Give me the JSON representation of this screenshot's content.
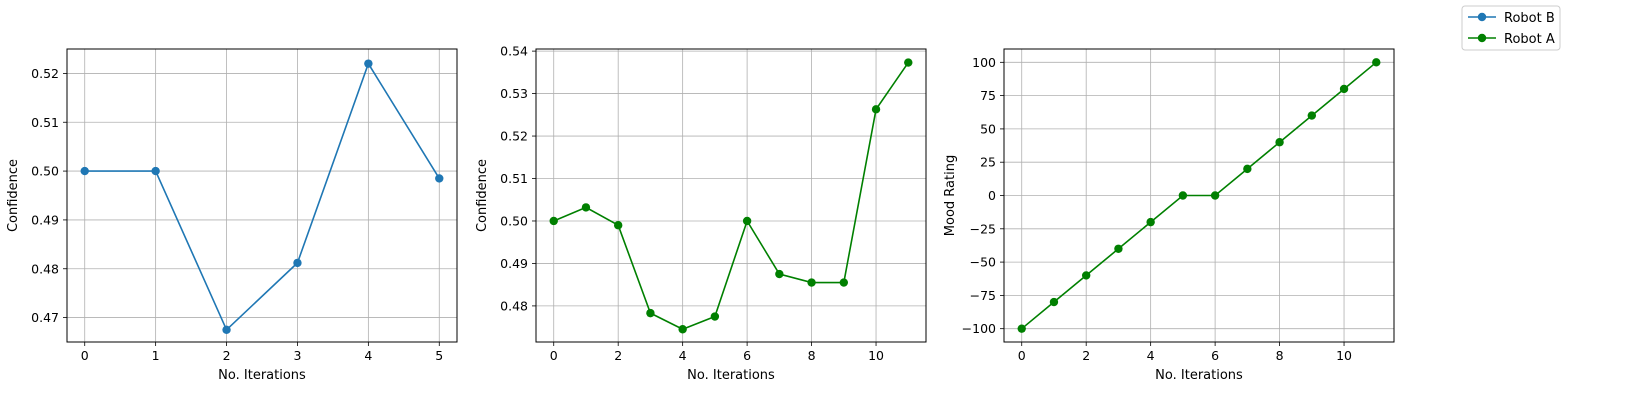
{
  "legend": {
    "placement": "top-right",
    "entries": [
      {
        "label": "Robot B",
        "color": "#1f77b4",
        "marker": "circle"
      },
      {
        "label": "Robot A",
        "color": "#008000",
        "marker": "circle"
      }
    ]
  },
  "chart_data": [
    {
      "type": "line",
      "series_label": "Robot B",
      "color": "#1f77b4",
      "xlabel": "No. Iterations",
      "ylabel": "Confidence",
      "grid": true,
      "xlim": [
        -0.25,
        5.25
      ],
      "ylim": [
        0.465,
        0.525
      ],
      "xticks": [
        0,
        1,
        2,
        3,
        4,
        5
      ],
      "yticks": [
        0.47,
        0.48,
        0.49,
        0.5,
        0.51,
        0.52
      ],
      "ytick_labels": [
        "0.47",
        "0.48",
        "0.49",
        "0.50",
        "0.51",
        "0.52"
      ],
      "x": [
        0,
        1,
        2,
        3,
        4,
        5
      ],
      "y": [
        0.5,
        0.5,
        0.4675,
        0.4812,
        0.522,
        0.4985
      ]
    },
    {
      "type": "line",
      "series_label": "Robot A",
      "color": "#008000",
      "xlabel": "No. Iterations",
      "ylabel": "Confidence",
      "grid": true,
      "xlim": [
        -0.55,
        11.55
      ],
      "ylim": [
        0.4715,
        0.5405
      ],
      "xticks": [
        0,
        2,
        4,
        6,
        8,
        10
      ],
      "yticks": [
        0.48,
        0.49,
        0.5,
        0.51,
        0.52,
        0.53,
        0.54
      ],
      "ytick_labels": [
        "0.48",
        "0.49",
        "0.50",
        "0.51",
        "0.52",
        "0.53",
        "0.54"
      ],
      "x": [
        0,
        1,
        2,
        3,
        4,
        5,
        6,
        7,
        8,
        9,
        10,
        11
      ],
      "y": [
        0.5,
        0.5032,
        0.499,
        0.4783,
        0.4745,
        0.4775,
        0.5,
        0.4875,
        0.4855,
        0.4855,
        0.5263,
        0.5373
      ]
    },
    {
      "type": "line",
      "series_label": "Robot A",
      "color": "#008000",
      "xlabel": "No. Iterations",
      "ylabel": "Mood Rating",
      "grid": true,
      "xlim": [
        -0.55,
        11.55
      ],
      "ylim": [
        -110,
        110
      ],
      "xticks": [
        0,
        2,
        4,
        6,
        8,
        10
      ],
      "yticks": [
        -100,
        -75,
        -50,
        -25,
        0,
        25,
        50,
        75,
        100
      ],
      "ytick_labels": [
        "−100",
        "−75",
        "−50",
        "−25",
        "0",
        "25",
        "50",
        "75",
        "100"
      ],
      "x": [
        0,
        1,
        2,
        3,
        4,
        5,
        6,
        7,
        8,
        9,
        10,
        11
      ],
      "y": [
        -100,
        -80,
        -60,
        -40,
        -20,
        0,
        0,
        20,
        40,
        60,
        80,
        100
      ]
    }
  ]
}
